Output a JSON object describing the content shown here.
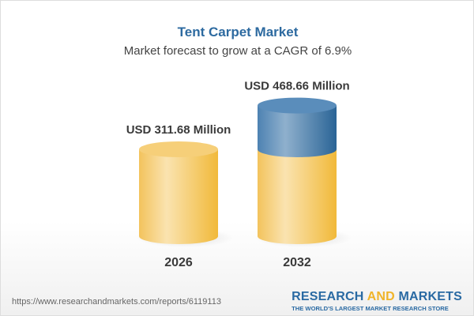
{
  "title": "Tent Carpet Market",
  "subtitle": "Market forecast to grow at a CAGR of 6.9%",
  "chart_data": {
    "type": "bar",
    "style": "3d-cylinder",
    "categories": [
      "2026",
      "2032"
    ],
    "values": [
      311.68,
      468.66
    ],
    "data_labels": [
      "USD 311.68 Million",
      "USD 468.66 Million"
    ],
    "unit": "USD Million",
    "cagr": "6.9%",
    "colors": {
      "base": "#f5c55a",
      "growth": "#4f86b5"
    }
  },
  "footer": {
    "url": "https://www.researchandmarkets.com/reports/6119113",
    "logo_part1": "RESEARCH ",
    "logo_part2": "AND",
    "logo_part3": " MARKETS",
    "tagline": "THE WORLD'S LARGEST MARKET RESEARCH STORE"
  }
}
